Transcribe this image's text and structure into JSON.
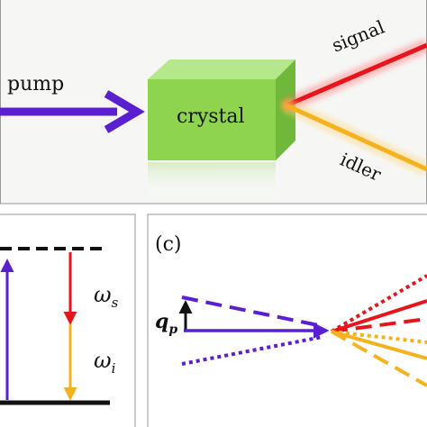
{
  "panel_a": {
    "pump_label": "pump",
    "crystal_label": "crystal",
    "signal_label": "signal",
    "idler_label": "idler"
  },
  "panel_b": {
    "omega_s": "ω",
    "omega_s_sub": "s",
    "omega_i": "ω",
    "omega_i_sub": "i"
  },
  "panel_c": {
    "panel_label": "(c)",
    "q_label": "q",
    "q_sub": "p"
  },
  "colors": {
    "pump": "#5a1fd1",
    "signal": "#e8141c",
    "idler": "#f5b21f",
    "crystal": "#8fd44f",
    "panel_border": "#9a9a9a"
  }
}
